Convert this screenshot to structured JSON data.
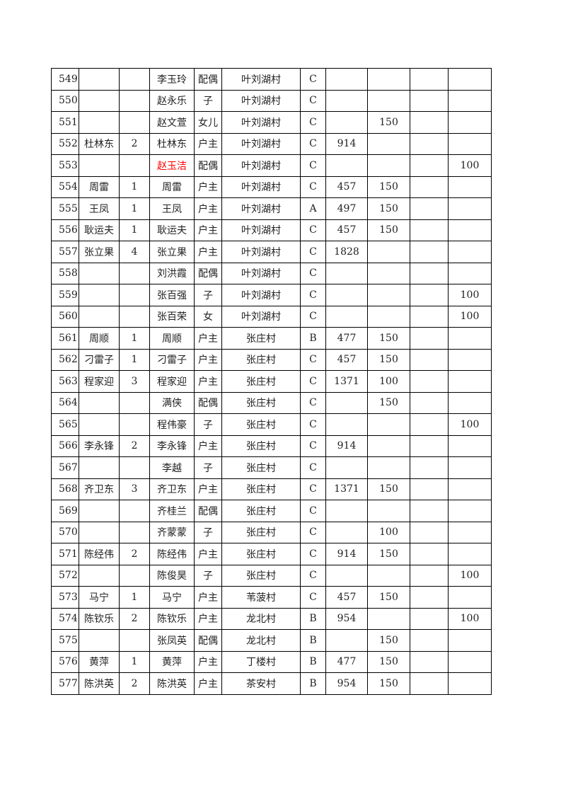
{
  "highlight_color": "#ff0000",
  "rows": [
    {
      "no": "549",
      "head": "",
      "count": "",
      "member": "李玉玲",
      "relation": "配偶",
      "village": "叶刘湖村",
      "class": "C",
      "v1": "",
      "v2": "",
      "v3": "",
      "v4": "",
      "red": false
    },
    {
      "no": "550",
      "head": "",
      "count": "",
      "member": "赵永乐",
      "relation": "子",
      "village": "叶刘湖村",
      "class": "C",
      "v1": "",
      "v2": "",
      "v3": "",
      "v4": "",
      "red": false
    },
    {
      "no": "551",
      "head": "",
      "count": "",
      "member": "赵文萱",
      "relation": "女儿",
      "village": "叶刘湖村",
      "class": "C",
      "v1": "",
      "v2": "150",
      "v3": "",
      "v4": "",
      "red": false
    },
    {
      "no": "552",
      "head": "杜林东",
      "count": "2",
      "member": "杜林东",
      "relation": "户主",
      "village": "叶刘湖村",
      "class": "C",
      "v1": "914",
      "v2": "",
      "v3": "",
      "v4": "",
      "red": false
    },
    {
      "no": "553",
      "head": "",
      "count": "",
      "member": "赵玉洁",
      "relation": "配偶",
      "village": "叶刘湖村",
      "class": "C",
      "v1": "",
      "v2": "",
      "v3": "",
      "v4": "100",
      "red": true
    },
    {
      "no": "554",
      "head": "周雷",
      "count": "1",
      "member": "周雷",
      "relation": "户主",
      "village": "叶刘湖村",
      "class": "C",
      "v1": "457",
      "v2": "150",
      "v3": "",
      "v4": "",
      "red": false
    },
    {
      "no": "555",
      "head": "王凤",
      "count": "1",
      "member": "王凤",
      "relation": "户主",
      "village": "叶刘湖村",
      "class": "A",
      "v1": "497",
      "v2": "150",
      "v3": "",
      "v4": "",
      "red": false
    },
    {
      "no": "556",
      "head": "耿运夫",
      "count": "1",
      "member": "耿运夫",
      "relation": "户主",
      "village": "叶刘湖村",
      "class": "C",
      "v1": "457",
      "v2": "150",
      "v3": "",
      "v4": "",
      "red": false
    },
    {
      "no": "557",
      "head": "张立果",
      "count": "4",
      "member": "张立果",
      "relation": "户主",
      "village": "叶刘湖村",
      "class": "C",
      "v1": "1828",
      "v2": "",
      "v3": "",
      "v4": "",
      "red": false
    },
    {
      "no": "558",
      "head": "",
      "count": "",
      "member": "刘洪霞",
      "relation": "配偶",
      "village": "叶刘湖村",
      "class": "C",
      "v1": "",
      "v2": "",
      "v3": "",
      "v4": "",
      "red": false
    },
    {
      "no": "559",
      "head": "",
      "count": "",
      "member": "张百强",
      "relation": "子",
      "village": "叶刘湖村",
      "class": "C",
      "v1": "",
      "v2": "",
      "v3": "",
      "v4": "100",
      "red": false
    },
    {
      "no": "560",
      "head": "",
      "count": "",
      "member": "张百荣",
      "relation": "女",
      "village": "叶刘湖村",
      "class": "C",
      "v1": "",
      "v2": "",
      "v3": "",
      "v4": "100",
      "red": false
    },
    {
      "no": "561",
      "head": "周顺",
      "count": "1",
      "member": "周顺",
      "relation": "户主",
      "village": "张庄村",
      "class": "B",
      "v1": "477",
      "v2": "150",
      "v3": "",
      "v4": "",
      "red": false
    },
    {
      "no": "562",
      "head": "刁雷子",
      "count": "1",
      "member": "刁雷子",
      "relation": "户主",
      "village": "张庄村",
      "class": "C",
      "v1": "457",
      "v2": "150",
      "v3": "",
      "v4": "",
      "red": false
    },
    {
      "no": "563",
      "head": "程家迎",
      "count": "3",
      "member": "程家迎",
      "relation": "户主",
      "village": "张庄村",
      "class": "C",
      "v1": "1371",
      "v2": "100",
      "v3": "",
      "v4": "",
      "red": false
    },
    {
      "no": "564",
      "head": "",
      "count": "",
      "member": "满侠",
      "relation": "配偶",
      "village": "张庄村",
      "class": "C",
      "v1": "",
      "v2": "150",
      "v3": "",
      "v4": "",
      "red": false
    },
    {
      "no": "565",
      "head": "",
      "count": "",
      "member": "程伟豪",
      "relation": "子",
      "village": "张庄村",
      "class": "C",
      "v1": "",
      "v2": "",
      "v3": "",
      "v4": "100",
      "red": false
    },
    {
      "no": "566",
      "head": "李永锋",
      "count": "2",
      "member": "李永锋",
      "relation": "户主",
      "village": "张庄村",
      "class": "C",
      "v1": "914",
      "v2": "",
      "v3": "",
      "v4": "",
      "red": false
    },
    {
      "no": "567",
      "head": "",
      "count": "",
      "member": "李越",
      "relation": "子",
      "village": "张庄村",
      "class": "C",
      "v1": "",
      "v2": "",
      "v3": "",
      "v4": "",
      "red": false
    },
    {
      "no": "568",
      "head": "齐卫东",
      "count": "3",
      "member": "齐卫东",
      "relation": "户主",
      "village": "张庄村",
      "class": "C",
      "v1": "1371",
      "v2": "150",
      "v3": "",
      "v4": "",
      "red": false
    },
    {
      "no": "569",
      "head": "",
      "count": "",
      "member": "齐桂兰",
      "relation": "配偶",
      "village": "张庄村",
      "class": "C",
      "v1": "",
      "v2": "",
      "v3": "",
      "v4": "",
      "red": false
    },
    {
      "no": "570",
      "head": "",
      "count": "",
      "member": "齐蒙蒙",
      "relation": "子",
      "village": "张庄村",
      "class": "C",
      "v1": "",
      "v2": "100",
      "v3": "",
      "v4": "",
      "red": false
    },
    {
      "no": "571",
      "head": "陈经伟",
      "count": "2",
      "member": "陈经伟",
      "relation": "户主",
      "village": "张庄村",
      "class": "C",
      "v1": "914",
      "v2": "150",
      "v3": "",
      "v4": "",
      "red": false
    },
    {
      "no": "572",
      "head": "",
      "count": "",
      "member": "陈俊昊",
      "relation": "子",
      "village": "张庄村",
      "class": "C",
      "v1": "",
      "v2": "",
      "v3": "",
      "v4": "100",
      "red": false
    },
    {
      "no": "573",
      "head": "马宁",
      "count": "1",
      "member": "马宁",
      "relation": "户主",
      "village": "苇菠村",
      "class": "C",
      "v1": "457",
      "v2": "150",
      "v3": "",
      "v4": "",
      "red": false
    },
    {
      "no": "574",
      "head": "陈钦乐",
      "count": "2",
      "member": "陈钦乐",
      "relation": "户主",
      "village": "龙北村",
      "class": "B",
      "v1": "954",
      "v2": "",
      "v3": "",
      "v4": "100",
      "red": false
    },
    {
      "no": "575",
      "head": "",
      "count": "",
      "member": "张凤英",
      "relation": "配偶",
      "village": "龙北村",
      "class": "B",
      "v1": "",
      "v2": "150",
      "v3": "",
      "v4": "",
      "red": false
    },
    {
      "no": "576",
      "head": "黄萍",
      "count": "1",
      "member": "黄萍",
      "relation": "户主",
      "village": "丁楼村",
      "class": "B",
      "v1": "477",
      "v2": "150",
      "v3": "",
      "v4": "",
      "red": false
    },
    {
      "no": "577",
      "head": "陈洪英",
      "count": "2",
      "member": "陈洪英",
      "relation": "户主",
      "village": "茶安村",
      "class": "B",
      "v1": "954",
      "v2": "150",
      "v3": "",
      "v4": "",
      "red": false
    }
  ]
}
